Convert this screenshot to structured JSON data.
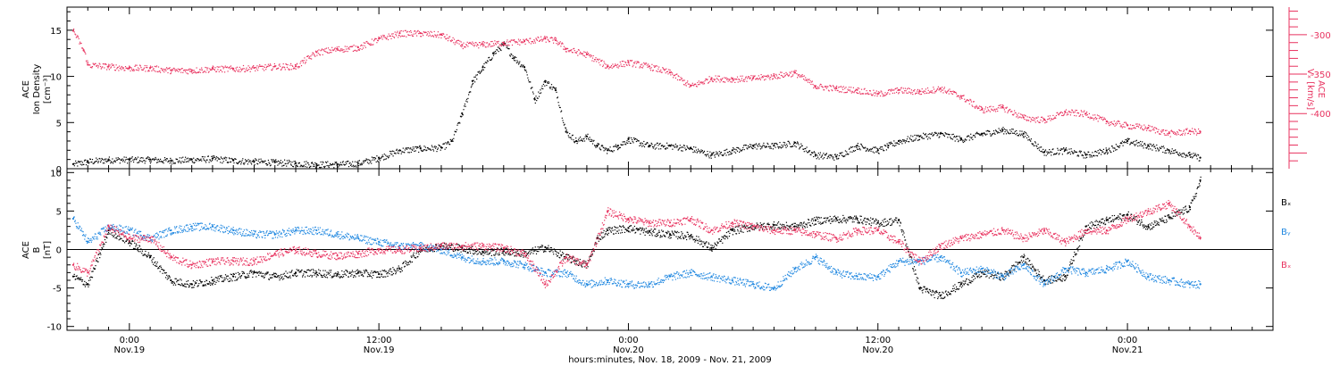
{
  "colors": {
    "black": "#000000",
    "blue": "#1f87e0",
    "pink": "#e8325f"
  },
  "chart_data": [
    {
      "type": "scatter",
      "panel": "top",
      "ylabel_lines": [
        "ACE",
        "Ion Density",
        "[cm⁻³]"
      ],
      "y2label_lines": [
        "ACE",
        "Vₓ [km/s]"
      ],
      "ylim": [
        0,
        17.5
      ],
      "y2lim": [
        -470,
        -265
      ],
      "yticks": [
        "0",
        "5",
        "10",
        "15"
      ],
      "y2ticks": [
        "-300",
        "-350",
        "-400"
      ],
      "series": [
        {
          "axis": "left",
          "color": "#000000",
          "x": [
            -2.7,
            -2,
            -1,
            0,
            1,
            2,
            3,
            4,
            5,
            6,
            7,
            8,
            9,
            10,
            11,
            12,
            13,
            14,
            15,
            15.5,
            16,
            16.5,
            17,
            17.5,
            18,
            18.5,
            19,
            19.5,
            20,
            20.5,
            21,
            21.5,
            22,
            22.5,
            23,
            23.5,
            24,
            25,
            26,
            27,
            28,
            29,
            30,
            31,
            32,
            33,
            34,
            35,
            36,
            36.5,
            37,
            38,
            39,
            40,
            41,
            42,
            43,
            44,
            45,
            46,
            47,
            48,
            49,
            50,
            51,
            51.5
          ],
          "y": [
            0.5,
            0.8,
            1.0,
            1.0,
            1.0,
            0.9,
            1.0,
            1.1,
            0.9,
            0.8,
            0.7,
            0.6,
            0.5,
            0.5,
            0.6,
            1.2,
            2.0,
            2.2,
            2.3,
            3.0,
            6.0,
            9.5,
            11.0,
            12.5,
            13.5,
            12.0,
            11.0,
            7.5,
            9.5,
            8.5,
            4.0,
            3.0,
            3.5,
            2.5,
            2.0,
            2.5,
            3.2,
            2.5,
            2.5,
            2.2,
            1.5,
            2.0,
            2.5,
            2.5,
            2.8,
            1.5,
            1.3,
            2.5,
            2.0,
            2.5,
            3.0,
            3.5,
            3.8,
            3.2,
            3.8,
            4.2,
            3.8,
            1.8,
            2.0,
            1.5,
            2.0,
            3.0,
            2.5,
            2.0,
            1.5,
            1.2
          ]
        },
        {
          "axis": "right",
          "color": "#e8325f",
          "x": [
            -2.7,
            -2.2,
            -2,
            -1,
            0,
            1,
            2,
            3,
            4,
            5,
            6,
            7,
            8,
            9,
            10,
            11,
            12,
            13,
            14,
            15,
            16,
            17,
            18,
            19,
            20,
            20.5,
            21,
            22,
            23,
            24,
            25,
            26,
            27,
            28,
            29,
            30,
            31,
            32,
            33,
            34,
            35,
            36,
            37,
            38,
            39,
            40,
            41,
            42,
            43,
            44,
            45,
            46,
            47,
            48,
            49,
            50,
            51,
            51.5
          ],
          "y": [
            -295,
            -320,
            -338,
            -340,
            -342,
            -342,
            -345,
            -345,
            -343,
            -343,
            -342,
            -340,
            -340,
            -322,
            -318,
            -316,
            -305,
            -298,
            -298,
            -300,
            -313,
            -312,
            -310,
            -308,
            -305,
            -307,
            -318,
            -325,
            -340,
            -335,
            -340,
            -348,
            -365,
            -355,
            -356,
            -355,
            -352,
            -348,
            -365,
            -368,
            -370,
            -375,
            -370,
            -372,
            -368,
            -378,
            -395,
            -392,
            -405,
            -408,
            -398,
            -400,
            -410,
            -415,
            -418,
            -425,
            -422,
            -423
          ]
        }
      ]
    },
    {
      "type": "scatter",
      "panel": "bottom",
      "ylabel_lines": [
        "ACE",
        "B",
        "[nT]"
      ],
      "ylim": [
        -10.5,
        10.5
      ],
      "yticks": [
        "10",
        "5",
        "0",
        "-5",
        "-10"
      ],
      "legend": [
        {
          "label": "Bₓ",
          "color": "#000000"
        },
        {
          "label": "Bᵧ",
          "color": "#1f87e0"
        },
        {
          "label": "Bₓ",
          "color": "#e8325f"
        }
      ],
      "series": [
        {
          "color": "#000000",
          "x": [
            -2.7,
            -2,
            -1,
            0,
            1,
            2,
            3,
            4,
            5,
            6,
            7,
            8,
            9,
            10,
            11,
            12,
            13,
            14,
            15,
            16,
            17,
            18,
            19,
            20,
            21,
            22,
            22.5,
            23,
            24,
            25,
            26,
            27,
            28,
            29,
            30,
            31,
            32,
            33,
            34,
            35,
            36,
            37,
            38,
            39,
            40,
            41,
            42,
            43,
            44,
            45,
            46,
            47,
            48,
            49,
            50,
            51,
            51.5
          ],
          "y": [
            -3.5,
            -4.5,
            2.5,
            1,
            -1,
            -4,
            -4.5,
            -4,
            -3.5,
            -3,
            -3.5,
            -3,
            -3,
            -3.2,
            -3,
            -3.2,
            -2.5,
            0,
            0.5,
            0.2,
            -0.3,
            -0.2,
            -0.5,
            0.3,
            -1,
            -2,
            1.5,
            2.5,
            2.8,
            2.3,
            2,
            1.8,
            0.2,
            2.5,
            3,
            3.2,
            3,
            3.8,
            4,
            4,
            3.5,
            3.8,
            -5,
            -6,
            -4.5,
            -3,
            -3.5,
            -1,
            -4,
            -3.5,
            3,
            3.8,
            4.5,
            3,
            4.2,
            5.5,
            9
          ]
        },
        {
          "color": "#1f87e0",
          "x": [
            -2.7,
            -2,
            -1,
            0,
            1,
            2,
            3,
            4,
            5,
            6,
            7,
            8,
            9,
            10,
            11,
            12,
            13,
            14,
            15,
            16,
            17,
            18,
            19,
            20,
            21,
            22,
            23,
            24,
            25,
            26,
            27,
            28,
            29,
            30,
            31,
            32,
            33,
            34,
            35,
            36,
            37,
            38,
            39,
            40,
            41,
            42,
            43,
            44,
            45,
            46,
            47,
            48,
            49,
            50,
            51,
            51.5
          ],
          "y": [
            4,
            1,
            3,
            2.5,
            1.5,
            2.5,
            3,
            3,
            2.5,
            2,
            2,
            2.5,
            2.5,
            2,
            1.5,
            1,
            0.5,
            0.5,
            0,
            -1,
            -1.5,
            -1.5,
            -2,
            -3,
            -3,
            -4.5,
            -4,
            -4.5,
            -4.5,
            -3.5,
            -3,
            -3.5,
            -4,
            -4.5,
            -5,
            -2.5,
            -1,
            -3,
            -3.5,
            -3.5,
            -1.5,
            -1.5,
            -1,
            -3,
            -2.5,
            -3.5,
            -2,
            -4.5,
            -2.5,
            -3,
            -2.5,
            -1.5,
            -3.5,
            -4,
            -4.5,
            -4.5
          ]
        },
        {
          "color": "#e8325f",
          "x": [
            -2.7,
            -2,
            -1,
            0,
            1,
            2,
            3,
            4,
            5,
            6,
            7,
            8,
            9,
            10,
            11,
            12,
            13,
            14,
            15,
            16,
            17,
            18,
            19,
            20,
            21,
            22,
            23,
            24,
            25,
            26,
            27,
            28,
            29,
            30,
            31,
            32,
            33,
            34,
            35,
            36,
            37,
            38,
            39,
            40,
            41,
            42,
            43,
            44,
            45,
            46,
            47,
            48,
            49,
            50,
            51,
            51.5
          ],
          "y": [
            -2,
            -3,
            3,
            1.5,
            1.5,
            -1,
            -2,
            -1.5,
            -1.5,
            -1.5,
            -0.5,
            0,
            -0.5,
            -0.8,
            -0.5,
            0,
            0,
            0.2,
            0.5,
            0.5,
            0.5,
            0.2,
            -0.5,
            -4.5,
            -1,
            -2,
            5,
            4,
            3.5,
            3.5,
            4,
            2.5,
            3.5,
            3,
            2.5,
            2.5,
            2,
            1.5,
            2.5,
            2.5,
            1,
            -1.5,
            0.5,
            1.5,
            2,
            2.5,
            1.5,
            2.5,
            1,
            2.5,
            2.5,
            4,
            5,
            6,
            3,
            1.5
          ]
        }
      ]
    }
  ],
  "x_axis": {
    "range_hours": [
      -3,
      55
    ],
    "ticks": [
      {
        "h": 0,
        "l1": "0:00",
        "l2": "Nov.19"
      },
      {
        "h": 12,
        "l1": "12:00",
        "l2": "Nov.19"
      },
      {
        "h": 24,
        "l1": "0:00",
        "l2": "Nov.20"
      },
      {
        "h": 36,
        "l1": "12:00",
        "l2": "Nov.20"
      },
      {
        "h": 48,
        "l1": "0:00",
        "l2": "Nov.21"
      }
    ],
    "title": "hours:minutes, Nov. 18, 2009 - Nov. 21, 2009"
  }
}
